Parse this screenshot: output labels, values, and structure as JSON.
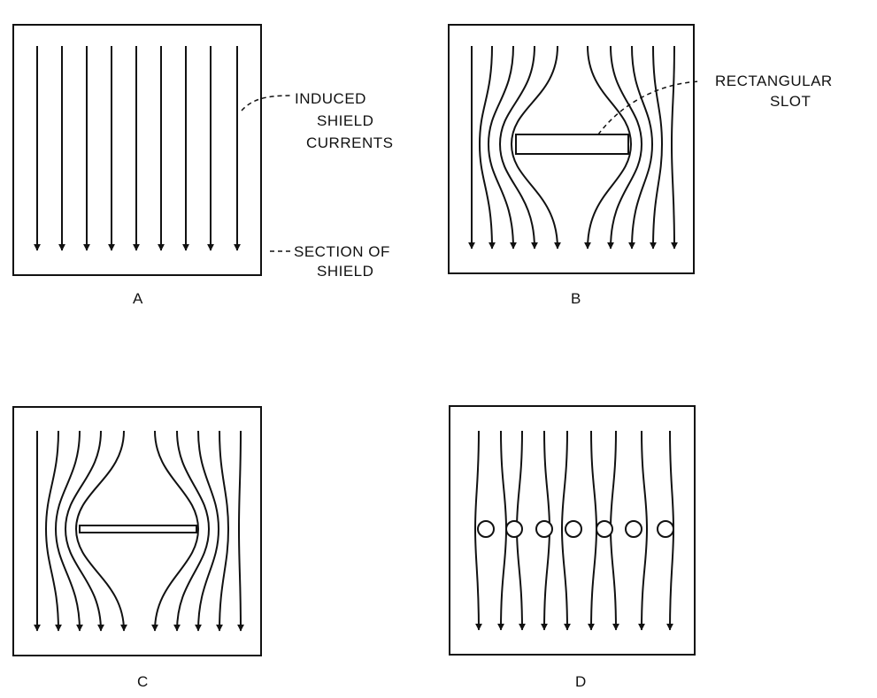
{
  "colors": {
    "ink": "#111111",
    "background": "#ffffff"
  },
  "panels": [
    {
      "id": "A",
      "label": "A"
    },
    {
      "id": "B",
      "label": "B"
    },
    {
      "id": "C",
      "label": "C"
    },
    {
      "id": "D",
      "label": "D"
    }
  ],
  "annotations": {
    "induced_shield_currents": [
      "INDUCED",
      "SHIELD",
      "CURRENTS"
    ],
    "section_of_shield": [
      "SECTION OF",
      "SHIELD"
    ],
    "rectangular_slot": [
      "RECTANGULAR",
      "SLOT"
    ]
  }
}
